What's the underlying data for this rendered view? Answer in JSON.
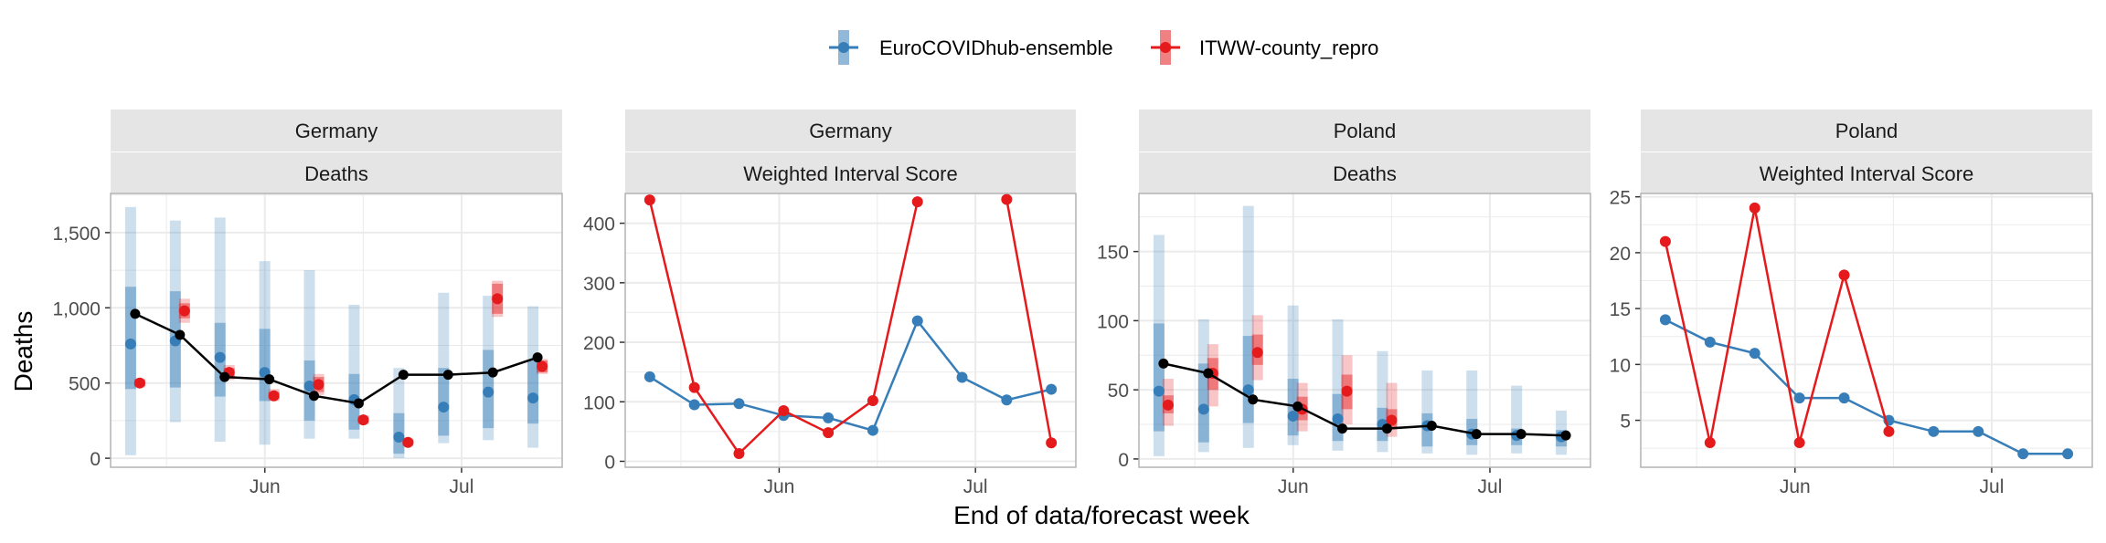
{
  "ylabel": "Deaths",
  "xlabel": "End of data/forecast week",
  "legend": {
    "placement": "top",
    "items": [
      {
        "label": "EuroCOVIDhub-ensemble",
        "color": "#377eb8"
      },
      {
        "label": "ITWW-county_repro",
        "color": "#e41a1c"
      }
    ]
  },
  "colors": {
    "observed": "#000000",
    "panel_strip": "#e5e5e5",
    "grid": "#ebebeb",
    "border": "#b3b3b3"
  },
  "x_tick_labels": [
    "Jun",
    "Jul"
  ],
  "chart_data": [
    {
      "type": "line",
      "facet": [
        "Germany",
        "Deaths"
      ],
      "y_ticks": [
        0,
        500,
        1000,
        1500
      ],
      "y_tick_labels": [
        "0",
        "500",
        "1,000",
        "1,500"
      ],
      "ylim": [
        -60,
        1760
      ],
      "xlim": [
        0,
        10
      ],
      "x": [
        "2021-05-15",
        "2021-05-22",
        "2021-05-29",
        "2021-06-05",
        "2021-06-12",
        "2021-06-19",
        "2021-06-26",
        "2021-07-03",
        "2021-07-10",
        "2021-07-17"
      ],
      "observed": [
        960,
        820,
        540,
        525,
        415,
        365,
        555,
        555,
        570,
        670
      ],
      "series": [
        {
          "name": "EuroCOVIDhub-ensemble",
          "median": [
            760,
            780,
            670,
            570,
            480,
            390,
            140,
            340,
            440,
            400
          ],
          "inner": [
            [
              460,
              1140
            ],
            [
              470,
              1110
            ],
            [
              410,
              900
            ],
            [
              380,
              860
            ],
            [
              250,
              650
            ],
            [
              190,
              560
            ],
            [
              30,
              300
            ],
            [
              150,
              600
            ],
            [
              200,
              720
            ],
            [
              230,
              650
            ]
          ],
          "outer": [
            [
              20,
              1670
            ],
            [
              240,
              1580
            ],
            [
              110,
              1600
            ],
            [
              90,
              1310
            ],
            [
              130,
              1250
            ],
            [
              130,
              1020
            ],
            [
              0,
              600
            ],
            [
              100,
              1100
            ],
            [
              120,
              1080
            ],
            [
              70,
              1010
            ]
          ]
        },
        {
          "name": "ITWW-county_repro",
          "median": [
            500,
            980,
            570,
            415,
            490,
            255,
            105,
            null,
            1060,
            610
          ],
          "inner": [
            [
              480,
              520
            ],
            [
              930,
              1030
            ],
            [
              540,
              600
            ],
            [
              395,
              440
            ],
            [
              440,
              540
            ],
            [
              235,
              275
            ],
            [
              90,
              120
            ],
            null,
            [
              960,
              1160
            ],
            [
              570,
              650
            ]
          ],
          "outer": [
            [
              470,
              530
            ],
            [
              900,
              1060
            ],
            [
              520,
              620
            ],
            [
              380,
              460
            ],
            [
              420,
              560
            ],
            [
              225,
              285
            ],
            [
              80,
              130
            ],
            null,
            [
              940,
              1180
            ],
            [
              560,
              660
            ]
          ]
        }
      ]
    },
    {
      "type": "line",
      "facet": [
        "Germany",
        "Weighted Interval Score"
      ],
      "y_ticks": [
        0,
        100,
        200,
        300,
        400
      ],
      "y_tick_labels": [
        "0",
        "100",
        "200",
        "300",
        "400"
      ],
      "ylim": [
        -10,
        450
      ],
      "xlim": [
        0,
        10
      ],
      "x": [
        "2021-05-15",
        "2021-05-22",
        "2021-05-29",
        "2021-06-05",
        "2021-06-12",
        "2021-06-19",
        "2021-06-26",
        "2021-07-03",
        "2021-07-10",
        "2021-07-17"
      ],
      "series": [
        {
          "name": "EuroCOVIDhub-ensemble",
          "values": [
            142,
            95,
            97,
            77,
            73,
            52,
            236,
            141,
            103,
            121
          ]
        },
        {
          "name": "ITWW-county_repro",
          "values": [
            439,
            124,
            13,
            85,
            48,
            102,
            436,
            null,
            440,
            31
          ]
        }
      ]
    },
    {
      "type": "line",
      "facet": [
        "Poland",
        "Deaths"
      ],
      "y_ticks": [
        0,
        50,
        100,
        150
      ],
      "y_tick_labels": [
        "0",
        "50",
        "100",
        "150"
      ],
      "ylim": [
        -6,
        192
      ],
      "xlim": [
        0,
        10
      ],
      "x": [
        "2021-05-15",
        "2021-05-22",
        "2021-05-29",
        "2021-06-05",
        "2021-06-12",
        "2021-06-19",
        "2021-06-26",
        "2021-07-03",
        "2021-07-10",
        "2021-07-17"
      ],
      "observed": [
        69,
        62,
        43,
        38,
        22,
        22,
        24,
        18,
        18,
        17
      ],
      "series": [
        {
          "name": "EuroCOVIDhub-ensemble",
          "median": [
            49,
            36,
            50,
            31,
            29,
            25,
            24,
            18,
            17,
            16
          ],
          "inner": [
            [
              20,
              98
            ],
            [
              12,
              69
            ],
            [
              26,
              89
            ],
            [
              17,
              58
            ],
            [
              13,
              47
            ],
            [
              13,
              37
            ],
            [
              9,
              33
            ],
            [
              10,
              29
            ],
            [
              10,
              22
            ],
            [
              9,
              21
            ]
          ],
          "outer": [
            [
              2,
              162
            ],
            [
              5,
              101
            ],
            [
              8,
              183
            ],
            [
              10,
              111
            ],
            [
              6,
              101
            ],
            [
              5,
              78
            ],
            [
              4,
              64
            ],
            [
              3,
              64
            ],
            [
              4,
              53
            ],
            [
              3,
              35
            ]
          ]
        },
        {
          "name": "ITWW-county_repro",
          "median": [
            39,
            62,
            77,
            36,
            49,
            28,
            null,
            null,
            null,
            null
          ],
          "inner": [
            [
              33,
              46
            ],
            [
              50,
              73
            ],
            [
              68,
              90
            ],
            [
              28,
              45
            ],
            [
              36,
              61
            ],
            [
              22,
              36
            ],
            null,
            null,
            null,
            null
          ],
          "outer": [
            [
              24,
              58
            ],
            [
              38,
              83
            ],
            [
              57,
              104
            ],
            [
              20,
              55
            ],
            [
              25,
              75
            ],
            [
              16,
              55
            ],
            null,
            null,
            null,
            null
          ]
        }
      ]
    },
    {
      "type": "line",
      "facet": [
        "Poland",
        "Weighted Interval Score"
      ],
      "y_ticks": [
        5,
        10,
        15,
        20,
        25
      ],
      "y_tick_labels": [
        "5",
        "10",
        "15",
        "20",
        "25"
      ],
      "ylim": [
        0.8,
        25.3
      ],
      "xlim": [
        0,
        10
      ],
      "x": [
        "2021-05-15",
        "2021-05-22",
        "2021-05-29",
        "2021-06-05",
        "2021-06-12",
        "2021-06-19",
        "2021-06-26",
        "2021-07-03",
        "2021-07-10",
        "2021-07-17"
      ],
      "series": [
        {
          "name": "EuroCOVIDhub-ensemble",
          "values": [
            14,
            12,
            11,
            7,
            7,
            5,
            4,
            4,
            2,
            2
          ]
        },
        {
          "name": "ITWW-county_repro",
          "values": [
            21,
            3,
            24,
            3,
            18,
            4,
            null,
            null,
            null,
            null
          ]
        }
      ]
    }
  ]
}
